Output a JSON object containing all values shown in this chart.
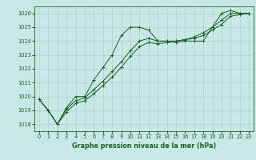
{
  "title": "Graphe pression niveau de la mer (hPa)",
  "bg_color": "#c8e8e8",
  "grid_color": "#b0d0d0",
  "line_color": "#1a6020",
  "xlim": [
    -0.5,
    23.5
  ],
  "ylim": [
    1017.5,
    1026.5
  ],
  "yticks": [
    1018,
    1019,
    1020,
    1021,
    1022,
    1023,
    1024,
    1025,
    1026
  ],
  "xticks": [
    0,
    1,
    2,
    3,
    4,
    5,
    6,
    7,
    8,
    9,
    10,
    11,
    12,
    13,
    14,
    15,
    16,
    17,
    18,
    19,
    20,
    21,
    22,
    23
  ],
  "line1_y": [
    1019.8,
    1019.0,
    1018.0,
    1019.2,
    1020.0,
    1020.0,
    1021.2,
    1022.1,
    1023.0,
    1024.4,
    1025.0,
    1025.0,
    1024.8,
    1024.0,
    1024.0,
    1023.9,
    1024.0,
    1024.0,
    1024.0,
    1025.0,
    1026.0,
    1026.2,
    1026.0,
    1026.0
  ],
  "line2_y": [
    1019.8,
    1019.0,
    1018.0,
    1019.1,
    1019.7,
    1019.9,
    1020.5,
    1021.1,
    1021.8,
    1022.5,
    1023.3,
    1024.0,
    1024.2,
    1024.0,
    1024.0,
    1024.0,
    1024.1,
    1024.2,
    1024.4,
    1024.8,
    1025.2,
    1025.8,
    1025.9,
    1026.0
  ],
  "line3_y": [
    1019.8,
    1019.0,
    1018.0,
    1018.9,
    1019.5,
    1019.7,
    1020.2,
    1020.8,
    1021.4,
    1022.1,
    1022.9,
    1023.6,
    1023.9,
    1023.8,
    1023.9,
    1024.0,
    1024.1,
    1024.3,
    1024.6,
    1025.0,
    1025.5,
    1026.0,
    1026.0,
    1026.0
  ],
  "tick_fontsize": 4.8,
  "label_fontsize": 5.8,
  "lw": 0.7,
  "ms": 2.2,
  "mew": 0.7
}
